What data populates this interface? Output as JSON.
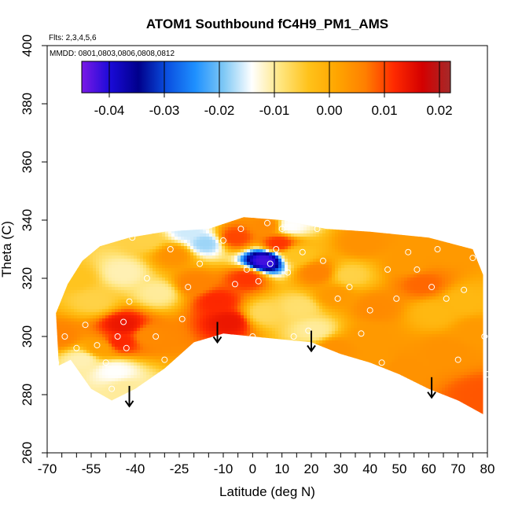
{
  "chart_data": {
    "type": "heatmap",
    "title": "ATOM1 Southbound fC4H9_PM1_AMS",
    "annotations": {
      "flights": "Flts: 2,3,4,5,6",
      "dates": "MMDD: 0801,0803,0806,0808,0812"
    },
    "xlabel": "Latitude (deg N)",
    "ylabel": "Theta (C)",
    "xlim": [
      -70,
      80
    ],
    "ylim": [
      260,
      400
    ],
    "x_ticks": [
      "-70",
      "-55",
      "-40",
      "-25",
      "-10",
      "0",
      "10",
      "20",
      "30",
      "40",
      "50",
      "60",
      "70",
      "80"
    ],
    "y_ticks": [
      "260",
      "280",
      "300",
      "320",
      "340",
      "360",
      "380",
      "400"
    ],
    "colorbar": {
      "range": [
        -0.045,
        0.022
      ],
      "ticks": [
        "-0.04",
        "-0.03",
        "-0.02",
        "-0.01",
        "0.00",
        "0.01",
        "0.02"
      ],
      "colors": [
        "#7a1ae6",
        "#1a0ad8",
        "#00008b",
        "#0a4fe0",
        "#1e90ff",
        "#7ec8f5",
        "#ffffff",
        "#ffe680",
        "#ffc21a",
        "#ffa500",
        "#ff7f00",
        "#ff2a00",
        "#d40000",
        "#a52a2a"
      ]
    },
    "field_samples": [
      {
        "x": -66,
        "y": 300,
        "v": 0.006
      },
      {
        "x": -58,
        "y": 292,
        "v": -0.011
      },
      {
        "x": -52,
        "y": 296,
        "v": 0.002
      },
      {
        "x": -47,
        "y": 288,
        "v": -0.014
      },
      {
        "x": -45,
        "y": 298,
        "v": 0.012
      },
      {
        "x": -44,
        "y": 304,
        "v": 0.014
      },
      {
        "x": -44,
        "y": 282,
        "v": -0.01
      },
      {
        "x": -54,
        "y": 312,
        "v": -0.006
      },
      {
        "x": -60,
        "y": 320,
        "v": -0.004
      },
      {
        "x": -44,
        "y": 322,
        "v": -0.011
      },
      {
        "x": -35,
        "y": 300,
        "v": 0.005
      },
      {
        "x": -32,
        "y": 315,
        "v": -0.01
      },
      {
        "x": -36,
        "y": 333,
        "v": -0.006
      },
      {
        "x": -27,
        "y": 328,
        "v": 0.004
      },
      {
        "x": -22,
        "y": 336,
        "v": -0.016
      },
      {
        "x": -16,
        "y": 332,
        "v": -0.018
      },
      {
        "x": -20,
        "y": 318,
        "v": 0.006
      },
      {
        "x": -12,
        "y": 312,
        "v": 0.012
      },
      {
        "x": -8,
        "y": 305,
        "v": 0.014
      },
      {
        "x": -6,
        "y": 334,
        "v": 0.01
      },
      {
        "x": -2,
        "y": 320,
        "v": 0.011
      },
      {
        "x": 4,
        "y": 326,
        "v": -0.042
      },
      {
        "x": 5,
        "y": 338,
        "v": 0.005
      },
      {
        "x": 9,
        "y": 332,
        "v": 0.011
      },
      {
        "x": 13,
        "y": 338,
        "v": -0.014
      },
      {
        "x": 15,
        "y": 328,
        "v": -0.004
      },
      {
        "x": 4,
        "y": 308,
        "v": -0.007
      },
      {
        "x": 16,
        "y": 310,
        "v": -0.008
      },
      {
        "x": 21,
        "y": 302,
        "v": -0.01
      },
      {
        "x": 22,
        "y": 322,
        "v": 0.006
      },
      {
        "x": 28,
        "y": 314,
        "v": 0.003
      },
      {
        "x": 33,
        "y": 321,
        "v": -0.006
      },
      {
        "x": 37,
        "y": 332,
        "v": 0.004
      },
      {
        "x": 42,
        "y": 310,
        "v": 0.005
      },
      {
        "x": 44,
        "y": 292,
        "v": 0.003
      },
      {
        "x": 53,
        "y": 325,
        "v": 0.003
      },
      {
        "x": 58,
        "y": 318,
        "v": 0.008
      },
      {
        "x": 62,
        "y": 308,
        "v": -0.002
      },
      {
        "x": 66,
        "y": 330,
        "v": 0.003
      },
      {
        "x": 66,
        "y": 295,
        "v": 0.004
      },
      {
        "x": 72,
        "y": 312,
        "v": -0.002
      },
      {
        "x": 76,
        "y": 302,
        "v": 0.003
      },
      {
        "x": 78,
        "y": 280,
        "v": 0.009
      },
      {
        "x": 40,
        "y": 300,
        "v": 0.003
      },
      {
        "x": 28,
        "y": 296,
        "v": 0.004
      },
      {
        "x": 50,
        "y": 290,
        "v": 0.004
      }
    ],
    "region_outline": [
      [
        -66,
        290
      ],
      [
        -62,
        292
      ],
      [
        -55,
        282
      ],
      [
        -48,
        278
      ],
      [
        -40,
        282
      ],
      [
        -30,
        289
      ],
      [
        -20,
        298
      ],
      [
        -10,
        301
      ],
      [
        0,
        300
      ],
      [
        10,
        299
      ],
      [
        20,
        298
      ],
      [
        30,
        294
      ],
      [
        40,
        291
      ],
      [
        50,
        287
      ],
      [
        60,
        282
      ],
      [
        70,
        278
      ],
      [
        79,
        273
      ],
      [
        80,
        275
      ],
      [
        80,
        291
      ],
      [
        79,
        305
      ],
      [
        79,
        320
      ],
      [
        75,
        330
      ],
      [
        60,
        334
      ],
      [
        40,
        336
      ],
      [
        25,
        337
      ],
      [
        10,
        340
      ],
      [
        -3,
        341
      ],
      [
        -15,
        337
      ],
      [
        -30,
        336
      ],
      [
        -42,
        334
      ],
      [
        -52,
        331
      ],
      [
        -58,
        326
      ],
      [
        -63,
        318
      ],
      [
        -67,
        308
      ]
    ],
    "observation_points": [
      [
        -67,
        291
      ],
      [
        -64,
        300
      ],
      [
        -60,
        296
      ],
      [
        -57,
        304
      ],
      [
        -53,
        297
      ],
      [
        -50,
        291
      ],
      [
        -48,
        282
      ],
      [
        -46,
        300
      ],
      [
        -44,
        305
      ],
      [
        -43,
        296
      ],
      [
        -42,
        312
      ],
      [
        -41,
        334
      ],
      [
        -36,
        320
      ],
      [
        -33,
        300
      ],
      [
        -30,
        292
      ],
      [
        -28,
        330
      ],
      [
        -24,
        306
      ],
      [
        -22,
        317
      ],
      [
        -18,
        325
      ],
      [
        -15,
        340
      ],
      [
        -10,
        333
      ],
      [
        -6,
        318
      ],
      [
        -4,
        337
      ],
      [
        -2,
        323
      ],
      [
        0,
        300
      ],
      [
        2,
        319
      ],
      [
        3,
        348
      ],
      [
        5,
        339
      ],
      [
        6,
        325
      ],
      [
        8,
        330
      ],
      [
        10,
        337
      ],
      [
        12,
        322
      ],
      [
        14,
        300
      ],
      [
        17,
        329
      ],
      [
        19,
        302
      ],
      [
        22,
        337
      ],
      [
        24,
        326
      ],
      [
        29,
        313
      ],
      [
        33,
        317
      ],
      [
        37,
        301
      ],
      [
        40,
        309
      ],
      [
        44,
        291
      ],
      [
        46,
        323
      ],
      [
        49,
        313
      ],
      [
        53,
        329
      ],
      [
        56,
        323
      ],
      [
        61,
        317
      ],
      [
        63,
        330
      ],
      [
        66,
        313
      ],
      [
        70,
        292
      ],
      [
        72,
        316
      ],
      [
        75,
        327
      ],
      [
        79,
        300
      ],
      [
        80,
        287
      ]
    ],
    "arrows": [
      {
        "x": -42,
        "y_start": 283,
        "y_end": 276
      },
      {
        "x": -12,
        "y_start": 305,
        "y_end": 298
      },
      {
        "x": 20,
        "y_start": 302,
        "y_end": 295
      },
      {
        "x": 61,
        "y_start": 286,
        "y_end": 279
      }
    ]
  }
}
